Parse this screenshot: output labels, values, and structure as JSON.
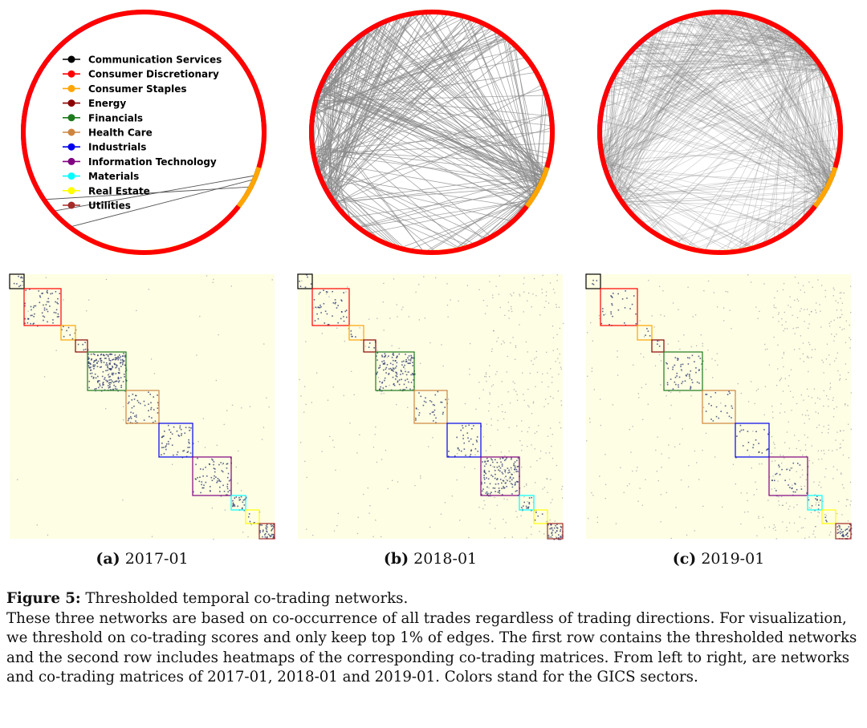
{
  "sectors": [
    {
      "name": "Communication Services",
      "color": "#000000"
    },
    {
      "name": "Consumer Discretionary",
      "color": "#ff0000"
    },
    {
      "name": "Consumer Staples",
      "color": "#ffa500"
    },
    {
      "name": "Energy",
      "color": "#8b0000"
    },
    {
      "name": "Financials",
      "color": "#1e7a1e"
    },
    {
      "name": "Health Care",
      "color": "#cd853f"
    },
    {
      "name": "Industrials",
      "color": "#0000ee"
    },
    {
      "name": "Information Technology",
      "color": "#800080"
    },
    {
      "name": "Materials",
      "color": "#00ffff"
    },
    {
      "name": "Real Estate",
      "color": "#ffff00"
    },
    {
      "name": "Utilities",
      "color": "#a52a2a"
    }
  ],
  "panels": [
    {
      "label": "(a)",
      "date": "2017-01",
      "edge_count": 3
    },
    {
      "label": "(b)",
      "date": "2018-01",
      "edge_count": 260
    },
    {
      "label": "(c)",
      "date": "2019-01",
      "edge_count": 420
    }
  ],
  "caption": {
    "figure_label": "Figure 5:",
    "title": "Thresholded temporal co-trading networks.",
    "body": "These three networks are based on co-occurrence of all trades regardless of trading directions. For visualization, we threshold on co-trading scores and only keep top 1% of edges. The first row contains the thresholded networks and the second row includes heatmaps of the corresponding co-trading matrices. From left to right, are networks and co-trading matrices of 2017-01, 2018-01 and 2019-01. Colors stand for the GICS sectors."
  }
}
